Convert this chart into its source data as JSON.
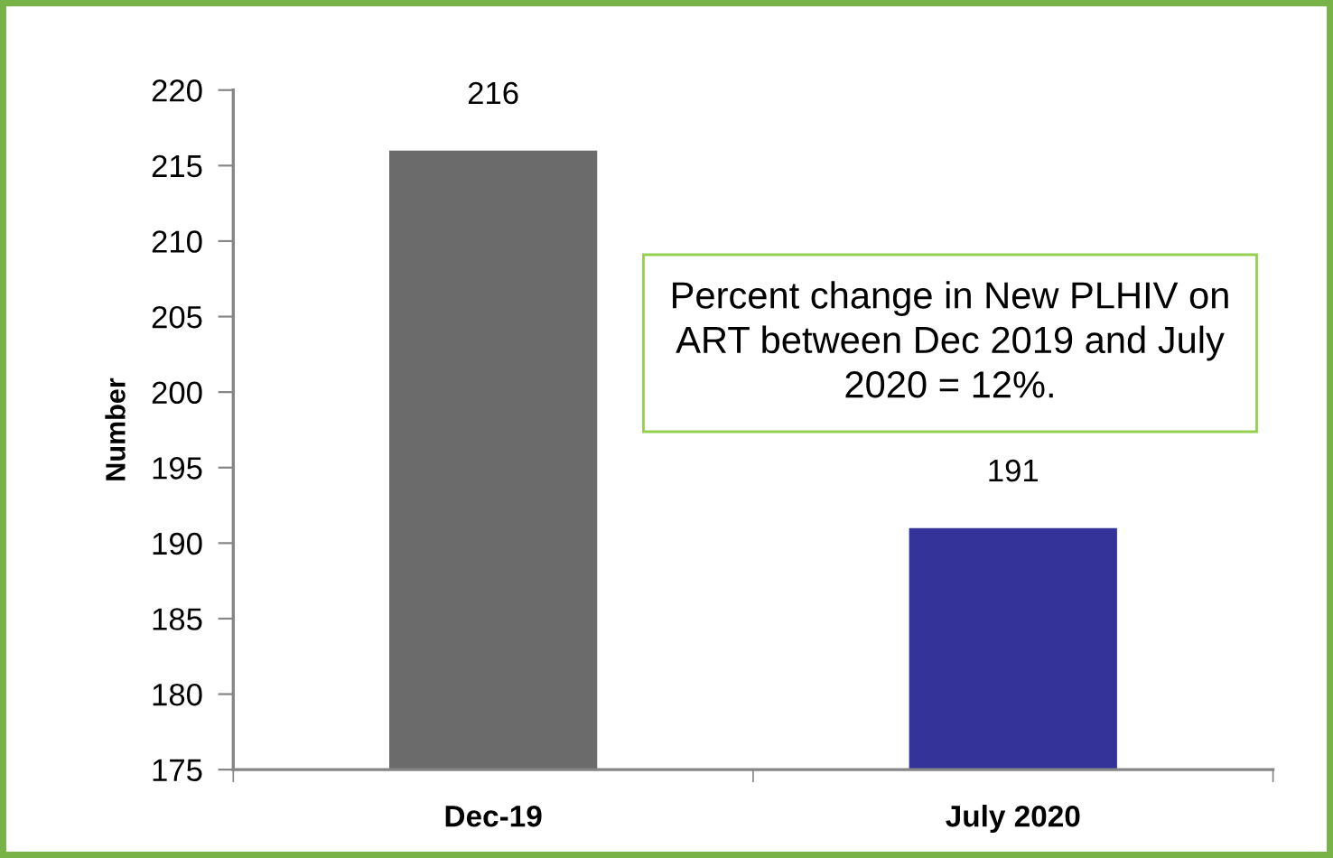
{
  "chart_data": {
    "type": "bar",
    "categories": [
      "Dec-19",
      "July 2020"
    ],
    "values": [
      216,
      191
    ],
    "colors": [
      "#6b6b6b",
      "#333399"
    ],
    "ylabel": "Number",
    "ylim": [
      175,
      220
    ],
    "yticks": [
      175,
      180,
      185,
      190,
      195,
      200,
      205,
      210,
      215,
      220
    ],
    "data_labels": true,
    "annotations": [
      "Percent change in New PLHIV on ART between Dec 2019 and July 2020 = 12%."
    ]
  }
}
